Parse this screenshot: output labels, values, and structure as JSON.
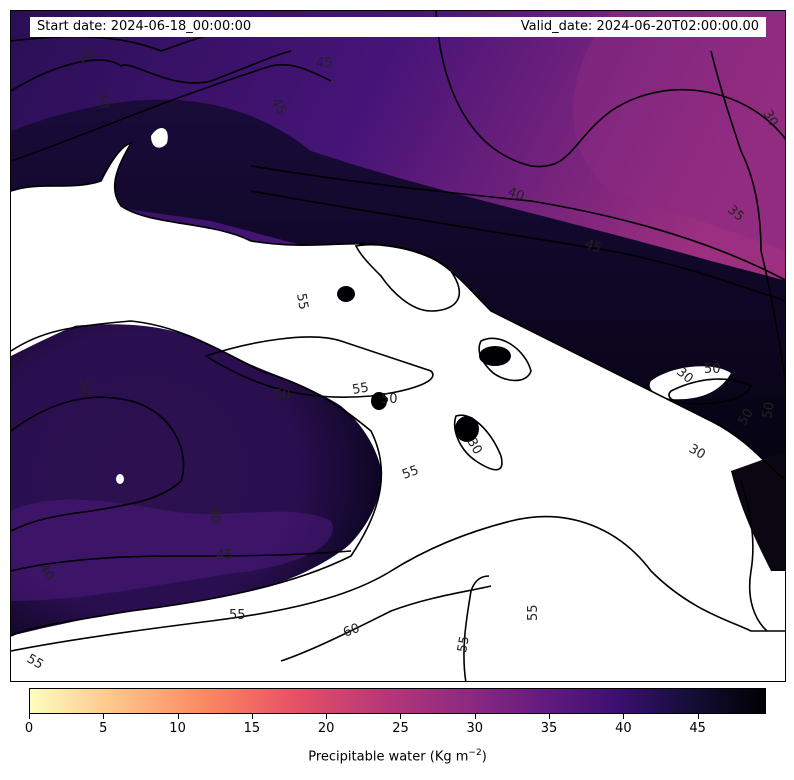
{
  "header": {
    "start_date": "Start date: 2024-06-18_00:00:00",
    "valid_date": "Valid_date: 2024-06-20T02:00:00.00"
  },
  "colorbar": {
    "label": "Precipitable water (Kg m",
    "label_sup": "−2",
    "label_end": ")",
    "ticks": [
      "0",
      "5",
      "10",
      "15",
      "20",
      "25",
      "30",
      "35",
      "40",
      "45"
    ],
    "min": 0,
    "max": 49.6,
    "colormap": "magma_r"
  },
  "contour_labels": [
    "35",
    "40",
    "45",
    "30",
    "35",
    "40",
    "45",
    "45",
    "55",
    "50",
    "55",
    "50",
    "30",
    "50",
    "30",
    "55",
    "50",
    "30",
    "40",
    "40",
    "45",
    "50",
    "50",
    "55",
    "60",
    "55",
    "55",
    "55"
  ],
  "colors": {
    "land_high": "#000004",
    "mid": "#3b0f70",
    "low": "#8c2981",
    "saturated": "#ffffff"
  }
}
